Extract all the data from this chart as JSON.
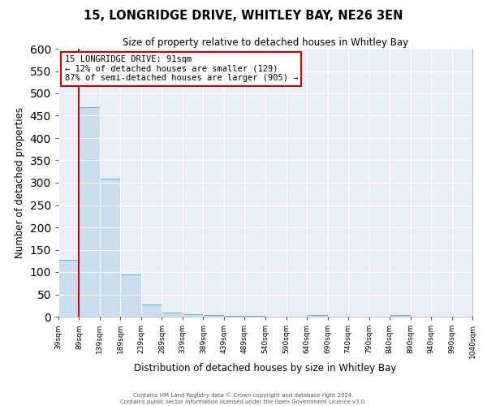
{
  "title": "15, LONGRIDGE DRIVE, WHITLEY BAY, NE26 3EN",
  "subtitle": "Size of property relative to detached houses in Whitley Bay",
  "xlabel": "Distribution of detached houses by size in Whitley Bay",
  "ylabel": "Number of detached properties",
  "bar_color": "#c9ddef",
  "bar_edge_color": "#6aaad4",
  "background_color": "#ffffff",
  "plot_bg_color": "#e8eef6",
  "grid_color": "#ffffff",
  "bin_edges": [
    39,
    89,
    139,
    189,
    239,
    289,
    339,
    389,
    439,
    489,
    540,
    590,
    640,
    690,
    740,
    790,
    840,
    890,
    940,
    990,
    1040
  ],
  "bin_labels": [
    "39sqm",
    "89sqm",
    "139sqm",
    "189sqm",
    "239sqm",
    "289sqm",
    "339sqm",
    "389sqm",
    "439sqm",
    "489sqm",
    "540sqm",
    "590sqm",
    "640sqm",
    "690sqm",
    "740sqm",
    "790sqm",
    "840sqm",
    "890sqm",
    "940sqm",
    "990sqm",
    "1040sqm"
  ],
  "bar_heights": [
    128,
    470,
    310,
    95,
    27,
    10,
    5,
    3,
    2,
    2,
    0,
    0,
    3,
    0,
    0,
    0,
    3,
    0,
    0,
    0,
    3
  ],
  "ylim": [
    0,
    600
  ],
  "yticks": [
    0,
    50,
    100,
    150,
    200,
    250,
    300,
    350,
    400,
    450,
    500,
    550,
    600
  ],
  "property_line_x": 89,
  "property_line_color": "#cc0000",
  "annotation_title": "15 LONGRIDGE DRIVE: 91sqm",
  "annotation_line1": "← 12% of detached houses are smaller (129)",
  "annotation_line2": "87% of semi-detached houses are larger (905) →",
  "annotation_box_color": "#ffffff",
  "annotation_box_edge": "#cc0000",
  "footer_line1": "Contains HM Land Registry data © Crown copyright and database right 2024.",
  "footer_line2": "Contains public sector information licensed under the Open Government Licence v3.0."
}
